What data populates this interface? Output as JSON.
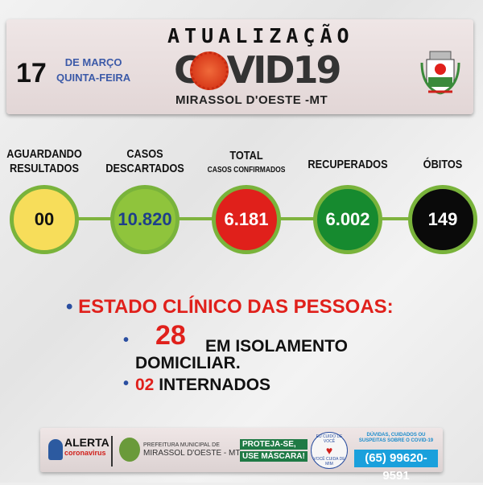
{
  "header": {
    "day": "17",
    "month": "DE MARÇO",
    "weekday": "QUINTA-FEIRA",
    "title": "ATUALIZAÇÃO",
    "covid": "COVID19",
    "city": "MIRASSOL D'OESTE -MT"
  },
  "stats": [
    {
      "label": "AGUARDANDO RESULTADOS",
      "sub": "",
      "value": "00",
      "color": "#f7dd5a",
      "text": "#111111"
    },
    {
      "label": "CASOS DESCARTADOS",
      "sub": "",
      "value": "10.820",
      "color": "#8fc43c",
      "text": "#1e3f8a"
    },
    {
      "label": "TOTAL",
      "sub": "CASOS CONFIRMADOS",
      "value": "6.181",
      "color": "#e0201b",
      "text": "#ffffff"
    },
    {
      "label": "RECUPERADOS",
      "sub": "",
      "value": "6.002",
      "color": "#168a2f",
      "text": "#ffffff"
    },
    {
      "label": "ÓBITOS",
      "sub": "",
      "value": "149",
      "color": "#0a0a0a",
      "text": "#ffffff"
    }
  ],
  "clinical": {
    "heading": "ESTADO CLÍNICO DAS PESSOAS:",
    "isolation_count": "28",
    "isolation_line1": "EM ISOLAMENTO",
    "isolation_line2": "DOMICILIAR.",
    "hospital_count": "02",
    "hospital_label": "INTERNADOS"
  },
  "footer": {
    "alert": "ALERTA",
    "alert_sub": "coronavirus",
    "pref_line1": "PREFEITURA MUNICIPAL DE",
    "pref_line2": "MIRASSOL D'OESTE - MT",
    "mask1": "PROTEJA-SE,",
    "mask2": "USE MÁSCARA!",
    "seal_top": "EU CUIDO DE VOCÊ",
    "seal_bottom": "VOCÊ CUIDA DE MIM",
    "doubts": "DÚVIDAS, CUIDADOS OU SUSPEITAS SOBRE O COVID-19",
    "phone": "(65) 99620-9591"
  }
}
